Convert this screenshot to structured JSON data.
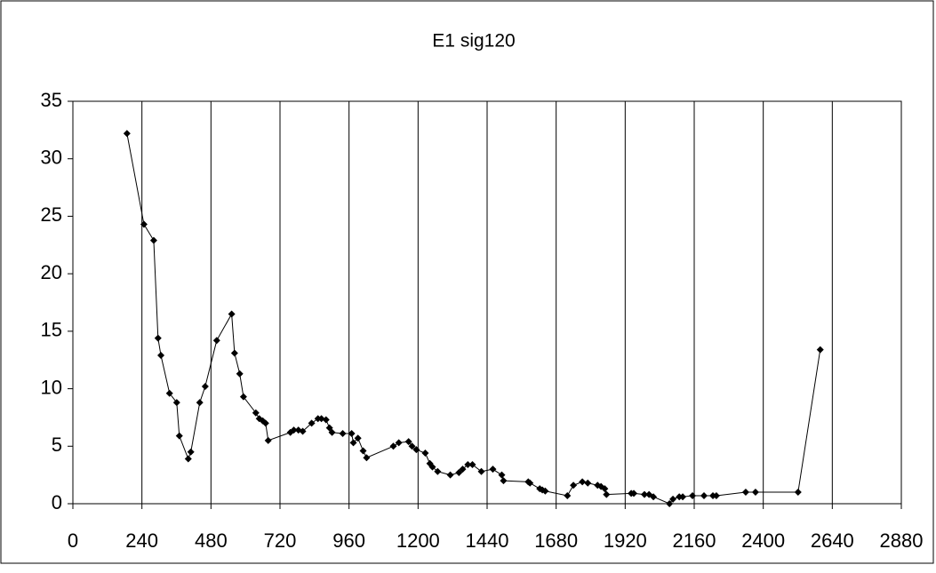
{
  "chart_data": {
    "type": "scatter",
    "title": "E1 sig120",
    "series": [
      {
        "name": "E1 sig120",
        "color": "#000000",
        "x": [
          188,
          247,
          281,
          296,
          306,
          336,
          361,
          370,
          401,
          410,
          441,
          460,
          500,
          552,
          562,
          580,
          593,
          636,
          648,
          660,
          670,
          679,
          756,
          768,
          784,
          799,
          830,
          852,
          864,
          880,
          892,
          901,
          938,
          969,
          975,
          991,
          1009,
          1021,
          1114,
          1133,
          1167,
          1179,
          1194,
          1225,
          1241,
          1250,
          1268,
          1312,
          1342,
          1355,
          1373,
          1389,
          1420,
          1460,
          1491,
          1497,
          1583,
          1589,
          1623,
          1632,
          1642,
          1719,
          1740,
          1771,
          1790,
          1824,
          1836,
          1849,
          1855,
          1941,
          1950,
          1987,
          2003,
          2018,
          2074,
          2086,
          2108,
          2120,
          2154,
          2194,
          2225,
          2237,
          2339,
          2373,
          2521,
          2598
        ],
        "values": [
          32.2,
          24.3,
          22.9,
          14.4,
          12.9,
          9.6,
          8.8,
          5.9,
          3.9,
          4.5,
          8.8,
          10.2,
          14.2,
          16.5,
          13.1,
          11.3,
          9.3,
          7.9,
          7.4,
          7.2,
          7.0,
          5.5,
          6.2,
          6.4,
          6.4,
          6.3,
          7.0,
          7.4,
          7.4,
          7.3,
          6.6,
          6.2,
          6.1,
          6.1,
          5.3,
          5.7,
          4.6,
          4.0,
          5.0,
          5.3,
          5.4,
          5.0,
          4.7,
          4.4,
          3.5,
          3.2,
          2.8,
          2.5,
          2.7,
          3.0,
          3.4,
          3.4,
          2.8,
          3.0,
          2.5,
          2.0,
          1.9,
          1.8,
          1.3,
          1.2,
          1.1,
          0.7,
          1.6,
          1.9,
          1.8,
          1.6,
          1.5,
          1.3,
          0.8,
          0.9,
          0.9,
          0.8,
          0.8,
          0.6,
          0,
          0.4,
          0.6,
          0.6,
          0.7,
          0.7,
          0.7,
          0.7,
          1.0,
          1.0,
          1.0,
          13.4
        ]
      }
    ],
    "xlim": [
      0,
      2880
    ],
    "xticks": [
      0,
      240,
      480,
      720,
      960,
      1200,
      1440,
      1680,
      1920,
      2160,
      2400,
      2640,
      2880
    ],
    "ylim": [
      0,
      35
    ],
    "yticks": [
      0,
      5,
      10,
      15,
      20,
      25,
      30,
      35
    ],
    "grid": "x"
  }
}
